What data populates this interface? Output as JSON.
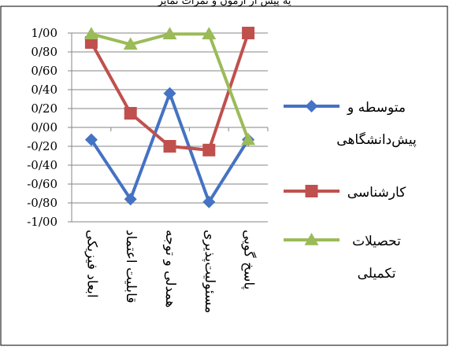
{
  "top_clipped_text": "یه پیش از آزمون و نمرات تمایز",
  "chart_data": {
    "type": "line",
    "title": "",
    "xlabel": "",
    "ylabel": "",
    "ylim": [
      -1,
      1
    ],
    "y_ticks": [
      "1/00",
      "0/80",
      "0/60",
      "0/40",
      "0/20",
      "0/00",
      "-0/20",
      "-0/40",
      "-0/60",
      "-0/80",
      "-1/00"
    ],
    "categories": [
      "ابعاد فیزیکی",
      "قابلیت اعتماد",
      "همدلی و توجه",
      "مسئولیت‌پذیری",
      "پاسخ گویی"
    ],
    "grid": true,
    "legend_position": "right",
    "series": [
      {
        "name": "متوسطه و پیش‌دانشگاهی",
        "name_lines": [
          "متوسطه و",
          "پیش‌دانشگاهی"
        ],
        "color": "#4472C4",
        "marker": "diamond",
        "values": [
          -0.13,
          -0.76,
          0.36,
          -0.79,
          -0.13
        ]
      },
      {
        "name": "کارشناسی",
        "name_lines": [
          "کارشناسی"
        ],
        "color": "#C0504D",
        "marker": "square",
        "values": [
          0.9,
          0.15,
          -0.2,
          -0.24,
          1.0
        ]
      },
      {
        "name": "تحصیلات تکمیلی",
        "name_lines": [
          "تحصیلات",
          "تکمیلی"
        ],
        "color": "#9BBB59",
        "marker": "triangle",
        "values": [
          0.99,
          0.88,
          0.99,
          0.99,
          -0.13
        ]
      }
    ]
  }
}
